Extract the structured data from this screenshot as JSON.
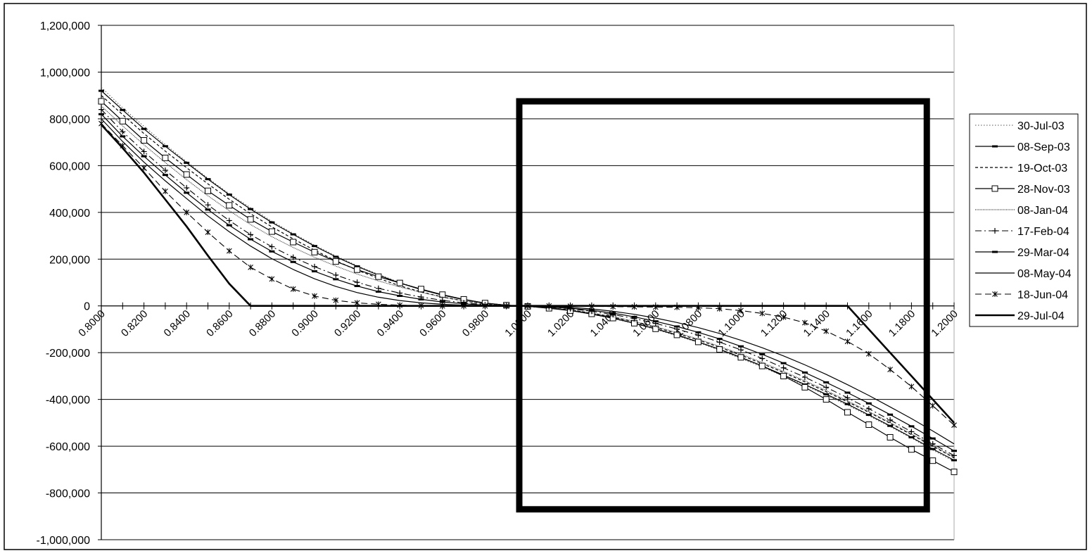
{
  "chart_data": {
    "type": "line",
    "title": "",
    "xlabel": "",
    "ylabel": "",
    "ylim": [
      -1000000,
      1200000
    ],
    "y_ticks": [
      "1,200,000",
      "1,000,000",
      "800,000",
      "600,000",
      "400,000",
      "200,000",
      "0",
      "-200,000",
      "-400,000",
      "-600,000",
      "-800,000",
      "-1,000,000"
    ],
    "x": [
      0.8,
      0.81,
      0.82,
      0.83,
      0.84,
      0.85,
      0.86,
      0.87,
      0.88,
      0.89,
      0.9,
      0.91,
      0.92,
      0.93,
      0.94,
      0.95,
      0.96,
      0.97,
      0.98,
      0.99,
      1.0,
      1.01,
      1.02,
      1.03,
      1.04,
      1.05,
      1.06,
      1.07,
      1.08,
      1.09,
      1.1,
      1.11,
      1.12,
      1.13,
      1.14,
      1.15,
      1.16,
      1.17,
      1.18,
      1.19,
      1.2
    ],
    "x_tick_labels": [
      "0.8000",
      "0.8200",
      "0.8400",
      "0.8600",
      "0.8800",
      "0.9000",
      "0.9200",
      "0.9400",
      "0.9600",
      "0.9800",
      "1.0000",
      "1.0200",
      "1.0400",
      "1.0600",
      "1.0800",
      "1.1000",
      "1.1200",
      "1.1400",
      "1.1600",
      "1.1800",
      "1.2000"
    ],
    "grid": "horizontal",
    "legend_position": "right",
    "annotation": "thick rectangle highlighting strikes from about 1.0000 to 1.1850",
    "series": [
      {
        "name": "30-Jul-03",
        "style": "dotted",
        "values": [
          935000,
          847000,
          768000,
          690000,
          617000,
          546000,
          480000,
          420000,
          362000,
          310000,
          260000,
          214000,
          172000,
          135000,
          100000,
          71000,
          47000,
          28000,
          12000,
          3000,
          -2000,
          -8000,
          -20000,
          -36000,
          -54000,
          -76000,
          -100000,
          -128000,
          -156000,
          -190000,
          -225000,
          -262000,
          -300000,
          -340000,
          -382000,
          -425000,
          -470000,
          -517000,
          -565000,
          -617000,
          -665000
        ]
      },
      {
        "name": "08-Sep-03",
        "style": "solid-dash-marker",
        "values": [
          920000,
          838000,
          757000,
          683000,
          612000,
          542000,
          476000,
          414000,
          357000,
          306000,
          256000,
          210000,
          169000,
          132000,
          98000,
          70000,
          46000,
          27000,
          12000,
          3000,
          -2000,
          -8000,
          -19000,
          -35000,
          -53000,
          -74000,
          -98000,
          -125000,
          -154000,
          -186000,
          -221000,
          -257000,
          -296000,
          -336000,
          -378000,
          -420000,
          -466000,
          -513000,
          -562000,
          -612000,
          -660000
        ]
      },
      {
        "name": "19-Oct-03",
        "style": "dashed",
        "values": [
          900000,
          818000,
          737000,
          662000,
          591000,
          522000,
          456000,
          394000,
          338000,
          287000,
          238000,
          193000,
          153000,
          118000,
          86000,
          60000,
          38000,
          21000,
          8000,
          1000,
          -3000,
          -8000,
          -17000,
          -31000,
          -48000,
          -68000,
          -92000,
          -118000,
          -146000,
          -177000,
          -211000,
          -247000,
          -285000,
          -325000,
          -367000,
          -410000,
          -455000,
          -502000,
          -551000,
          -600000,
          -650000
        ]
      },
      {
        "name": "28-Nov-03",
        "style": "solid-square-marker",
        "values": [
          875000,
          790000,
          708000,
          633000,
          562000,
          492000,
          430000,
          370000,
          318000,
          273000,
          230000,
          190000,
          155000,
          125000,
          98000,
          72000,
          48000,
          28000,
          12000,
          3000,
          -2000,
          -10000,
          -20000,
          -34000,
          -52000,
          -74000,
          -98000,
          -124000,
          -154000,
          -186000,
          -220000,
          -257000,
          -300000,
          -348000,
          -400000,
          -455000,
          -508000,
          -562000,
          -614000,
          -662000,
          -710000
        ]
      },
      {
        "name": "08-Jan-04",
        "style": "fine-dotted",
        "values": [
          855000,
          770000,
          689000,
          613000,
          540000,
          471000,
          407000,
          348000,
          296000,
          250000,
          208000,
          170000,
          136000,
          107000,
          81000,
          58000,
          38000,
          22000,
          9000,
          2000,
          -2000,
          -8000,
          -17000,
          -30000,
          -46000,
          -66000,
          -89000,
          -114000,
          -142000,
          -173000,
          -206000,
          -242000,
          -280000,
          -320000,
          -362000,
          -406000,
          -452000,
          -499000,
          -547000,
          -597000,
          -647000
        ]
      },
      {
        "name": "17-Feb-04",
        "style": "dash-dot-plus",
        "values": [
          840000,
          745000,
          660000,
          580000,
          505000,
          432000,
          365000,
          305000,
          253000,
          208000,
          168000,
          132000,
          101000,
          75000,
          55000,
          38000,
          24000,
          13000,
          5000,
          1000,
          -1000,
          -5000,
          -12000,
          -23000,
          -37000,
          -54000,
          -75000,
          -99000,
          -125000,
          -155000,
          -188000,
          -225000,
          -265000,
          -305000,
          -348000,
          -393000,
          -440000,
          -488000,
          -538000,
          -590000,
          -640000
        ]
      },
      {
        "name": "29-Mar-04",
        "style": "solid-dash-marker",
        "values": [
          820000,
          725000,
          640000,
          560000,
          484000,
          412000,
          345000,
          285000,
          233000,
          188000,
          148000,
          114000,
          85000,
          61000,
          43000,
          28000,
          17000,
          9000,
          3000,
          0,
          -1000,
          -4000,
          -10000,
          -19000,
          -31000,
          -47000,
          -66000,
          -88000,
          -113000,
          -141000,
          -173000,
          -207000,
          -245000,
          -285000,
          -327000,
          -371000,
          -417000,
          -465000,
          -515000,
          -567000,
          -620000
        ]
      },
      {
        "name": "08-May-04",
        "style": "solid",
        "values": [
          800000,
          703000,
          615000,
          535000,
          459000,
          385000,
          317000,
          256000,
          202000,
          156000,
          116000,
          83000,
          57000,
          37000,
          23000,
          13000,
          7000,
          3000,
          1000,
          0,
          0,
          -2000,
          -6000,
          -13000,
          -23000,
          -36000,
          -52000,
          -71000,
          -93000,
          -118000,
          -147000,
          -179000,
          -214000,
          -252000,
          -293000,
          -337000,
          -383000,
          -432000,
          -482000,
          -535000,
          -590000
        ]
      },
      {
        "name": "18-Jun-04",
        "style": "dash-x-marker",
        "values": [
          780000,
          685000,
          590000,
          490000,
          400000,
          315000,
          235000,
          165000,
          115000,
          72000,
          42000,
          24000,
          13000,
          7000,
          3000,
          1000,
          0,
          0,
          0,
          0,
          0,
          0,
          -1000,
          -2000,
          -3000,
          -4000,
          -5000,
          -6000,
          -8000,
          -12000,
          -20000,
          -32000,
          -48000,
          -72000,
          -108000,
          -152000,
          -205000,
          -272000,
          -345000,
          -427000,
          -510000
        ]
      },
      {
        "name": "29-Jul-04",
        "style": "thick-solid",
        "values": [
          775000,
          675000,
          570000,
          455000,
          340000,
          215000,
          95000,
          0,
          0,
          0,
          0,
          0,
          0,
          0,
          0,
          0,
          0,
          0,
          0,
          0,
          0,
          0,
          0,
          0,
          0,
          0,
          0,
          0,
          0,
          0,
          0,
          0,
          0,
          0,
          0,
          0,
          -100000,
          -200000,
          -300000,
          -400000,
          -500000
        ]
      }
    ]
  }
}
